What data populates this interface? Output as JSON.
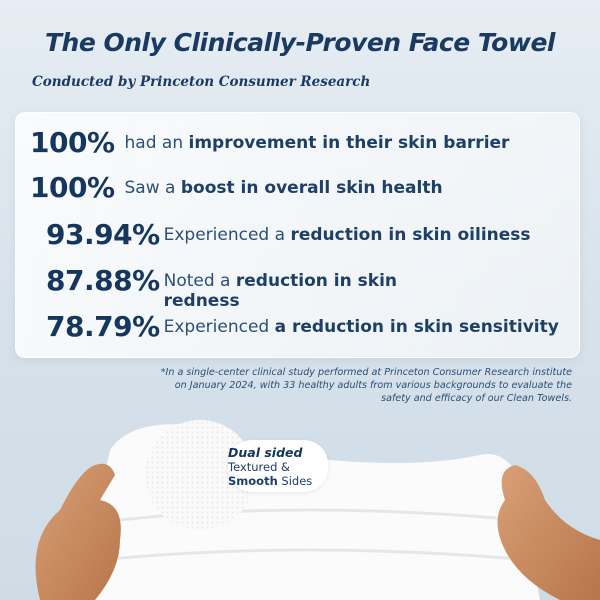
{
  "title": "The Only Clinically-Proven Face Towel",
  "subtitle": "Conducted by Princeton Consumer Research",
  "stats": [
    {
      "value": "100%",
      "pre": "had an ",
      "bold": "improvement in their skin barrier",
      "post": ""
    },
    {
      "value": "100%",
      "pre": "Saw a ",
      "bold": "boost in overall skin health",
      "post": ""
    },
    {
      "value": "93.94%",
      "pre": "Experienced a ",
      "bold": "reduction in skin oiliness",
      "post": ""
    },
    {
      "value": "87.88%",
      "pre": "Noted a ",
      "bold": "reduction in skin redness",
      "post": ""
    },
    {
      "value": "78.79%",
      "pre": "Experienced ",
      "bold": "a reduction in skin sensitivity",
      "post": ""
    }
  ],
  "footnote": "*In a single-center clinical study performed at Princeton Consumer Research institute on January 2024, with 33 healthy adults from various backgrounds to evaluate the safety and efficacy of our Clean Towels.",
  "badge": {
    "line1": "Dual sided",
    "line2_pre": "Textured",
    "line2_post": " &",
    "line3_bold": "Smooth",
    "line3_post": " Sides"
  },
  "colors": {
    "primary": "#15365e",
    "background": "#d6e1ea",
    "skin": "#c98a5e"
  }
}
